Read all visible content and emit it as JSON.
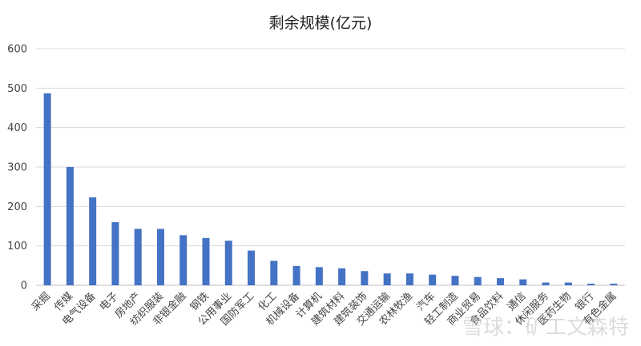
{
  "chart_data": {
    "type": "bar",
    "title": "剩余规模(亿元)",
    "xlabel": "",
    "ylabel": "",
    "ylim": [
      0,
      600
    ],
    "yticks": [
      0,
      100,
      200,
      300,
      400,
      500,
      600
    ],
    "grid": true,
    "legend": "none",
    "bar_color": "#4472C4",
    "categories": [
      "采掘",
      "传媒",
      "电气设备",
      "电子",
      "房地产",
      "纺织服装",
      "非银金融",
      "钢铁",
      "公用事业",
      "国防军工",
      "化工",
      "机械设备",
      "计算机",
      "建筑材料",
      "建筑装饰",
      "交通运输",
      "农林牧渔",
      "汽车",
      "轻工制造",
      "商业贸易",
      "食品饮料",
      "通信",
      "休闲服务",
      "医药生物",
      "银行",
      "有色金属"
    ],
    "values": [
      487,
      300,
      223,
      160,
      143,
      143,
      127,
      120,
      113,
      88,
      62,
      49,
      46,
      43,
      36,
      30,
      30,
      27,
      24,
      21,
      18,
      15,
      7,
      7,
      4,
      4
    ]
  },
  "watermark": "雪球：矿工文森特"
}
